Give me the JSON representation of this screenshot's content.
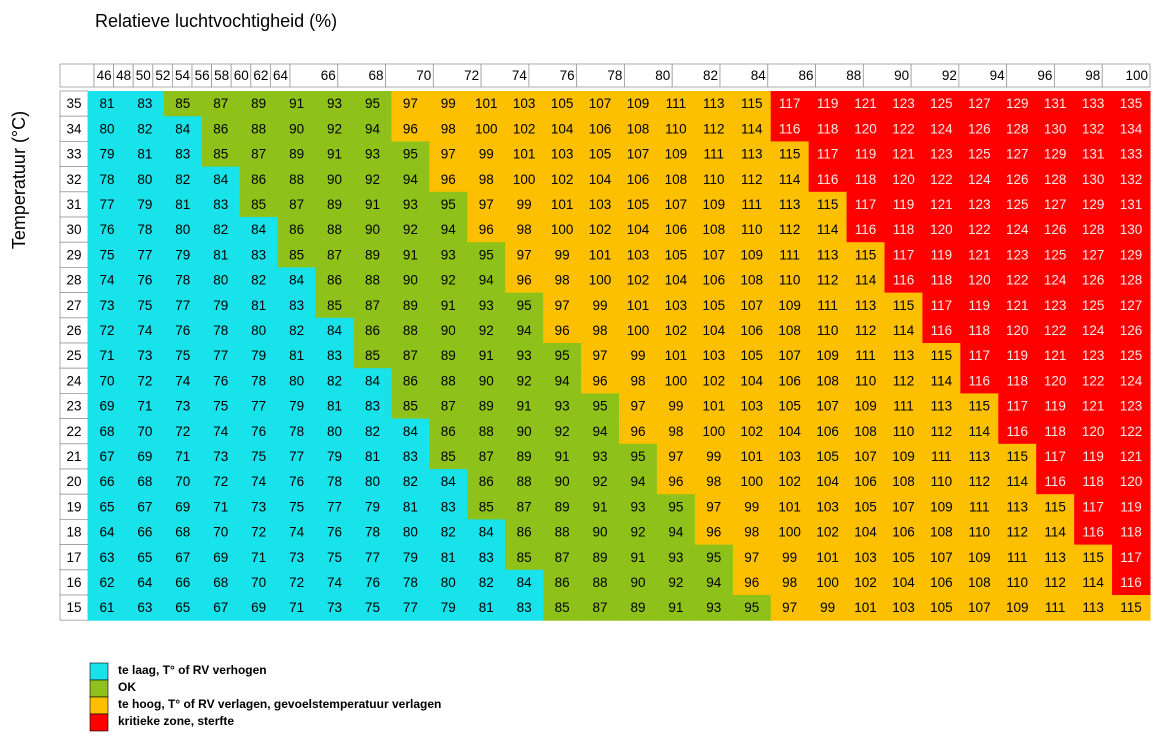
{
  "title": "Relatieve luchtvochtigheid (%)",
  "y_label": "Temperatuur (°C)",
  "columns": [
    46,
    48,
    50,
    52,
    54,
    56,
    58,
    60,
    62,
    64,
    66,
    68,
    70,
    72,
    74,
    76,
    78,
    80,
    82,
    84,
    86,
    88,
    90,
    92,
    94,
    96,
    98,
    100
  ],
  "rows": [
    {
      "label": 35,
      "cells": [
        81,
        83,
        85,
        87,
        89,
        91,
        93,
        95,
        97,
        99,
        101,
        103,
        105,
        107,
        109,
        111,
        113,
        115,
        117,
        119,
        121,
        123,
        125,
        127,
        129,
        131,
        133,
        135
      ],
      "zones": [
        0,
        0,
        1,
        1,
        1,
        1,
        1,
        1,
        2,
        2,
        2,
        2,
        2,
        2,
        2,
        2,
        2,
        2,
        3,
        3,
        3,
        3,
        3,
        3,
        3,
        3,
        3,
        3
      ]
    },
    {
      "label": 34,
      "cells": [
        80,
        82,
        84,
        86,
        88,
        90,
        92,
        94,
        96,
        98,
        100,
        102,
        104,
        106,
        108,
        110,
        112,
        114,
        116,
        118,
        120,
        122,
        124,
        126,
        128,
        130,
        132,
        134
      ],
      "zones": [
        0,
        0,
        0,
        1,
        1,
        1,
        1,
        1,
        2,
        2,
        2,
        2,
        2,
        2,
        2,
        2,
        2,
        2,
        3,
        3,
        3,
        3,
        3,
        3,
        3,
        3,
        3,
        3
      ]
    },
    {
      "label": 33,
      "cells": [
        79,
        81,
        83,
        85,
        87,
        89,
        91,
        93,
        95,
        97,
        99,
        101,
        103,
        105,
        107,
        109,
        111,
        113,
        115,
        117,
        119,
        121,
        123,
        125,
        127,
        129,
        131,
        133
      ],
      "zones": [
        0,
        0,
        0,
        1,
        1,
        1,
        1,
        1,
        1,
        2,
        2,
        2,
        2,
        2,
        2,
        2,
        2,
        2,
        2,
        3,
        3,
        3,
        3,
        3,
        3,
        3,
        3,
        3
      ]
    },
    {
      "label": 32,
      "cells": [
        78,
        80,
        82,
        84,
        86,
        88,
        90,
        92,
        94,
        96,
        98,
        100,
        102,
        104,
        106,
        108,
        110,
        112,
        114,
        116,
        118,
        120,
        122,
        124,
        126,
        128,
        130,
        132
      ],
      "zones": [
        0,
        0,
        0,
        0,
        1,
        1,
        1,
        1,
        1,
        2,
        2,
        2,
        2,
        2,
        2,
        2,
        2,
        2,
        2,
        3,
        3,
        3,
        3,
        3,
        3,
        3,
        3,
        3
      ]
    },
    {
      "label": 31,
      "cells": [
        77,
        79,
        81,
        83,
        85,
        87,
        89,
        91,
        93,
        95,
        97,
        99,
        101,
        103,
        105,
        107,
        109,
        111,
        113,
        115,
        117,
        119,
        121,
        123,
        125,
        127,
        129,
        131
      ],
      "zones": [
        0,
        0,
        0,
        0,
        1,
        1,
        1,
        1,
        1,
        1,
        2,
        2,
        2,
        2,
        2,
        2,
        2,
        2,
        2,
        2,
        3,
        3,
        3,
        3,
        3,
        3,
        3,
        3
      ]
    },
    {
      "label": 30,
      "cells": [
        76,
        78,
        80,
        82,
        84,
        86,
        88,
        90,
        92,
        94,
        96,
        98,
        100,
        102,
        104,
        106,
        108,
        110,
        112,
        114,
        116,
        118,
        120,
        122,
        124,
        126,
        128,
        130
      ],
      "zones": [
        0,
        0,
        0,
        0,
        0,
        1,
        1,
        1,
        1,
        1,
        2,
        2,
        2,
        2,
        2,
        2,
        2,
        2,
        2,
        2,
        3,
        3,
        3,
        3,
        3,
        3,
        3,
        3
      ]
    },
    {
      "label": 29,
      "cells": [
        75,
        77,
        79,
        81,
        83,
        85,
        87,
        89,
        91,
        93,
        95,
        97,
        99,
        101,
        103,
        105,
        107,
        109,
        111,
        113,
        115,
        117,
        119,
        121,
        123,
        125,
        127,
        129
      ],
      "zones": [
        0,
        0,
        0,
        0,
        0,
        1,
        1,
        1,
        1,
        1,
        1,
        2,
        2,
        2,
        2,
        2,
        2,
        2,
        2,
        2,
        2,
        3,
        3,
        3,
        3,
        3,
        3,
        3
      ]
    },
    {
      "label": 28,
      "cells": [
        74,
        76,
        78,
        80,
        82,
        84,
        86,
        88,
        90,
        92,
        94,
        96,
        98,
        100,
        102,
        104,
        106,
        108,
        110,
        112,
        114,
        116,
        118,
        120,
        122,
        124,
        126,
        128
      ],
      "zones": [
        0,
        0,
        0,
        0,
        0,
        0,
        1,
        1,
        1,
        1,
        1,
        2,
        2,
        2,
        2,
        2,
        2,
        2,
        2,
        2,
        2,
        3,
        3,
        3,
        3,
        3,
        3,
        3
      ]
    },
    {
      "label": 27,
      "cells": [
        73,
        75,
        77,
        79,
        81,
        83,
        85,
        87,
        89,
        91,
        93,
        95,
        97,
        99,
        101,
        103,
        105,
        107,
        109,
        111,
        113,
        115,
        117,
        119,
        121,
        123,
        125,
        127
      ],
      "zones": [
        0,
        0,
        0,
        0,
        0,
        0,
        1,
        1,
        1,
        1,
        1,
        1,
        2,
        2,
        2,
        2,
        2,
        2,
        2,
        2,
        2,
        2,
        3,
        3,
        3,
        3,
        3,
        3
      ]
    },
    {
      "label": 26,
      "cells": [
        72,
        74,
        76,
        78,
        80,
        82,
        84,
        86,
        88,
        90,
        92,
        94,
        96,
        98,
        100,
        102,
        104,
        106,
        108,
        110,
        112,
        114,
        116,
        118,
        120,
        122,
        124,
        126
      ],
      "zones": [
        0,
        0,
        0,
        0,
        0,
        0,
        0,
        1,
        1,
        1,
        1,
        1,
        2,
        2,
        2,
        2,
        2,
        2,
        2,
        2,
        2,
        2,
        3,
        3,
        3,
        3,
        3,
        3
      ]
    },
    {
      "label": 25,
      "cells": [
        71,
        73,
        75,
        77,
        79,
        81,
        83,
        85,
        87,
        89,
        91,
        93,
        95,
        97,
        99,
        101,
        103,
        105,
        107,
        109,
        111,
        113,
        115,
        117,
        119,
        121,
        123,
        125
      ],
      "zones": [
        0,
        0,
        0,
        0,
        0,
        0,
        0,
        1,
        1,
        1,
        1,
        1,
        1,
        2,
        2,
        2,
        2,
        2,
        2,
        2,
        2,
        2,
        2,
        3,
        3,
        3,
        3,
        3
      ]
    },
    {
      "label": 24,
      "cells": [
        70,
        72,
        74,
        76,
        78,
        80,
        82,
        84,
        86,
        88,
        90,
        92,
        94,
        96,
        98,
        100,
        102,
        104,
        106,
        108,
        110,
        112,
        114,
        116,
        118,
        120,
        122,
        124
      ],
      "zones": [
        0,
        0,
        0,
        0,
        0,
        0,
        0,
        0,
        1,
        1,
        1,
        1,
        1,
        2,
        2,
        2,
        2,
        2,
        2,
        2,
        2,
        2,
        2,
        3,
        3,
        3,
        3,
        3
      ]
    },
    {
      "label": 23,
      "cells": [
        69,
        71,
        73,
        75,
        77,
        79,
        81,
        83,
        85,
        87,
        89,
        91,
        93,
        95,
        97,
        99,
        101,
        103,
        105,
        107,
        109,
        111,
        113,
        115,
        117,
        119,
        121,
        123
      ],
      "zones": [
        0,
        0,
        0,
        0,
        0,
        0,
        0,
        0,
        1,
        1,
        1,
        1,
        1,
        1,
        2,
        2,
        2,
        2,
        2,
        2,
        2,
        2,
        2,
        2,
        3,
        3,
        3,
        3
      ]
    },
    {
      "label": 22,
      "cells": [
        68,
        70,
        72,
        74,
        76,
        78,
        80,
        82,
        84,
        86,
        88,
        90,
        92,
        94,
        96,
        98,
        100,
        102,
        104,
        106,
        108,
        110,
        112,
        114,
        116,
        118,
        120,
        122
      ],
      "zones": [
        0,
        0,
        0,
        0,
        0,
        0,
        0,
        0,
        0,
        1,
        1,
        1,
        1,
        1,
        2,
        2,
        2,
        2,
        2,
        2,
        2,
        2,
        2,
        2,
        3,
        3,
        3,
        3
      ]
    },
    {
      "label": 21,
      "cells": [
        67,
        69,
        71,
        73,
        75,
        77,
        79,
        81,
        83,
        85,
        87,
        89,
        91,
        93,
        95,
        97,
        99,
        101,
        103,
        105,
        107,
        109,
        111,
        113,
        115,
        117,
        119,
        121
      ],
      "zones": [
        0,
        0,
        0,
        0,
        0,
        0,
        0,
        0,
        0,
        1,
        1,
        1,
        1,
        1,
        1,
        2,
        2,
        2,
        2,
        2,
        2,
        2,
        2,
        2,
        2,
        3,
        3,
        3
      ]
    },
    {
      "label": 20,
      "cells": [
        66,
        68,
        70,
        72,
        74,
        76,
        78,
        80,
        82,
        84,
        86,
        88,
        90,
        92,
        94,
        96,
        98,
        100,
        102,
        104,
        106,
        108,
        110,
        112,
        114,
        116,
        118,
        120
      ],
      "zones": [
        0,
        0,
        0,
        0,
        0,
        0,
        0,
        0,
        0,
        0,
        1,
        1,
        1,
        1,
        1,
        2,
        2,
        2,
        2,
        2,
        2,
        2,
        2,
        2,
        2,
        3,
        3,
        3
      ]
    },
    {
      "label": 19,
      "cells": [
        65,
        67,
        69,
        71,
        73,
        75,
        77,
        79,
        81,
        83,
        85,
        87,
        89,
        91,
        93,
        95,
        97,
        99,
        101,
        103,
        105,
        107,
        109,
        111,
        113,
        115,
        117,
        119
      ],
      "zones": [
        0,
        0,
        0,
        0,
        0,
        0,
        0,
        0,
        0,
        0,
        1,
        1,
        1,
        1,
        1,
        1,
        2,
        2,
        2,
        2,
        2,
        2,
        2,
        2,
        2,
        2,
        3,
        3
      ]
    },
    {
      "label": 18,
      "cells": [
        64,
        66,
        68,
        70,
        72,
        74,
        76,
        78,
        80,
        82,
        84,
        86,
        88,
        90,
        92,
        94,
        96,
        98,
        100,
        102,
        104,
        106,
        108,
        110,
        112,
        114,
        116,
        118
      ],
      "zones": [
        0,
        0,
        0,
        0,
        0,
        0,
        0,
        0,
        0,
        0,
        0,
        1,
        1,
        1,
        1,
        1,
        2,
        2,
        2,
        2,
        2,
        2,
        2,
        2,
        2,
        2,
        3,
        3
      ]
    },
    {
      "label": 17,
      "cells": [
        63,
        65,
        67,
        69,
        71,
        73,
        75,
        77,
        79,
        81,
        83,
        85,
        87,
        89,
        91,
        93,
        95,
        97,
        99,
        101,
        103,
        105,
        107,
        109,
        111,
        113,
        115,
        117
      ],
      "zones": [
        0,
        0,
        0,
        0,
        0,
        0,
        0,
        0,
        0,
        0,
        0,
        1,
        1,
        1,
        1,
        1,
        1,
        2,
        2,
        2,
        2,
        2,
        2,
        2,
        2,
        2,
        2,
        3
      ]
    },
    {
      "label": 16,
      "cells": [
        62,
        64,
        66,
        68,
        70,
        72,
        74,
        76,
        78,
        80,
        82,
        84,
        86,
        88,
        90,
        92,
        94,
        96,
        98,
        100,
        102,
        104,
        106,
        108,
        110,
        112,
        114,
        116
      ],
      "zones": [
        0,
        0,
        0,
        0,
        0,
        0,
        0,
        0,
        0,
        0,
        0,
        0,
        1,
        1,
        1,
        1,
        1,
        2,
        2,
        2,
        2,
        2,
        2,
        2,
        2,
        2,
        2,
        3
      ]
    },
    {
      "label": 15,
      "cells": [
        61,
        63,
        65,
        67,
        69,
        71,
        73,
        75,
        77,
        79,
        81,
        83,
        85,
        87,
        89,
        91,
        93,
        95,
        97,
        99,
        101,
        103,
        105,
        107,
        109,
        111,
        113,
        115
      ],
      "zones": [
        0,
        0,
        0,
        0,
        0,
        0,
        0,
        0,
        0,
        0,
        0,
        0,
        1,
        1,
        1,
        1,
        1,
        1,
        2,
        2,
        2,
        2,
        2,
        2,
        2,
        2,
        2,
        2
      ]
    }
  ],
  "legend": [
    {
      "label": "te laag, T° of RV verhogen",
      "color": "#19e3ea",
      "text_color": "#000000"
    },
    {
      "label": "OK",
      "color": "#8ec21a",
      "text_color": "#000000"
    },
    {
      "label": "te hoog, T° of RV verlagen, gevoelstemperatuur verlagen",
      "color": "#fcc000",
      "text_color": "#000000"
    },
    {
      "label": "kritieke zone, sterfte",
      "color": "#ff0000",
      "text_color": "#ffe6e6"
    }
  ]
}
